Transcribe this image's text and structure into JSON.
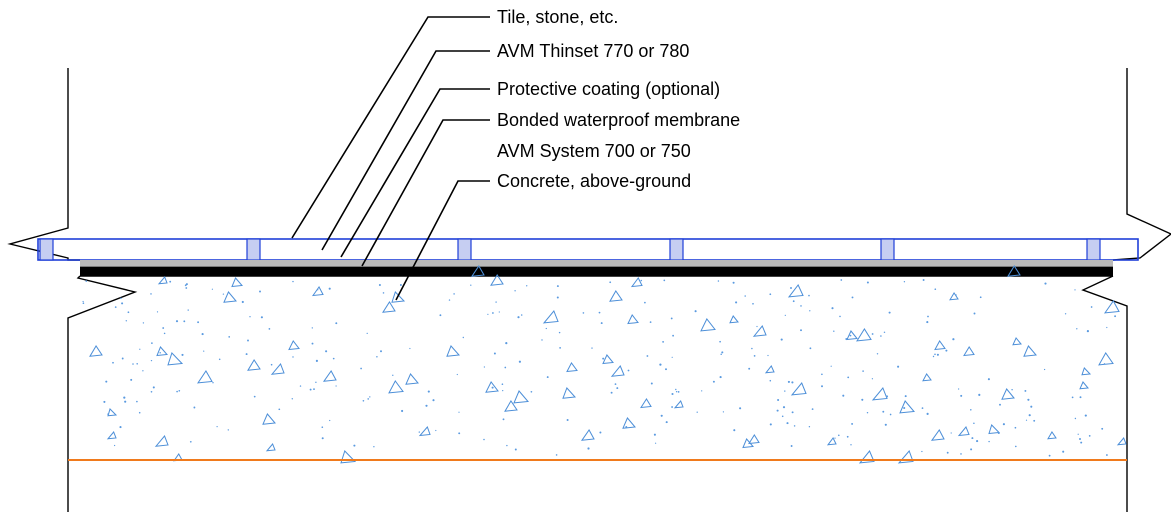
{
  "labels": [
    {
      "id": "tile",
      "text": "Tile, stone, etc."
    },
    {
      "id": "thinset",
      "text": "AVM Thinset 770 or 780"
    },
    {
      "id": "coating",
      "text": "Protective coating (optional)"
    },
    {
      "id": "membrane",
      "text": "Bonded waterproof membrane"
    },
    {
      "id": "system",
      "text": "AVM System 700 or 750"
    },
    {
      "id": "concrete",
      "text": "Concrete, above-ground"
    }
  ],
  "colors": {
    "linework": "#000000",
    "tile_outline": "#1f3fd8",
    "joint_fill": "#c6cef2",
    "thinset": "#b9b9b9",
    "membrane": "#000000",
    "aggregate": "#4d8fd8",
    "speckle": "#5a9ae0",
    "base_line": "#f07a1c"
  },
  "layers": [
    "tile",
    "thinset",
    "protective-coating",
    "waterproof-membrane",
    "concrete-slab",
    "subgrade-line"
  ]
}
